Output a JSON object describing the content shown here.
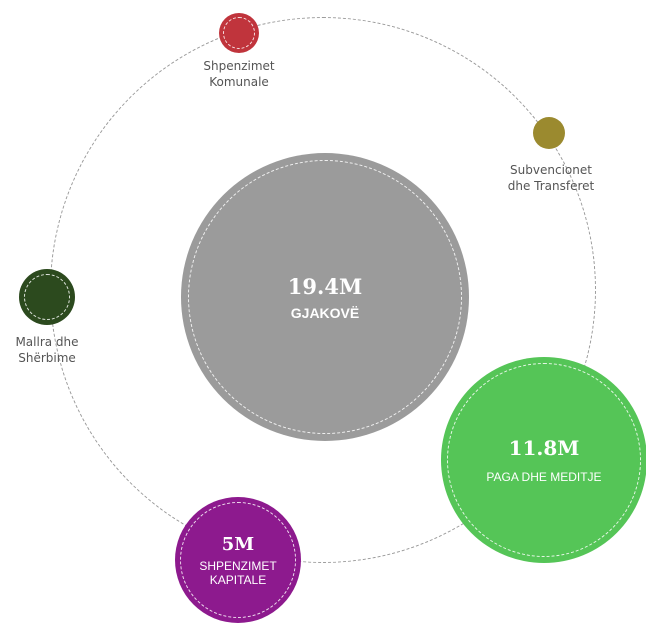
{
  "center": {
    "amount": "19.4M",
    "label": "GJAKOVË",
    "color": "#9b9b9b"
  },
  "categories": [
    {
      "id": "komunale",
      "line1": "Shpenzimet",
      "line2": "Komunale",
      "color": "#c0343c"
    },
    {
      "id": "subvencionet",
      "line1": "Subvencionet",
      "line2": "dhe Transferet",
      "color": "#9b8a2f"
    },
    {
      "id": "mallra",
      "line1": "Mallra dhe",
      "line2": "Shërbime",
      "color": "#2c4a1e"
    },
    {
      "id": "paga",
      "amount": "11.8M",
      "label": "PAGA DHE MEDITJE",
      "color": "#55c557"
    },
    {
      "id": "kapitale",
      "amount": "5M",
      "label1": "SHPENZIMET",
      "label2": "KAPITALE",
      "color": "#8d1a8e"
    }
  ]
}
